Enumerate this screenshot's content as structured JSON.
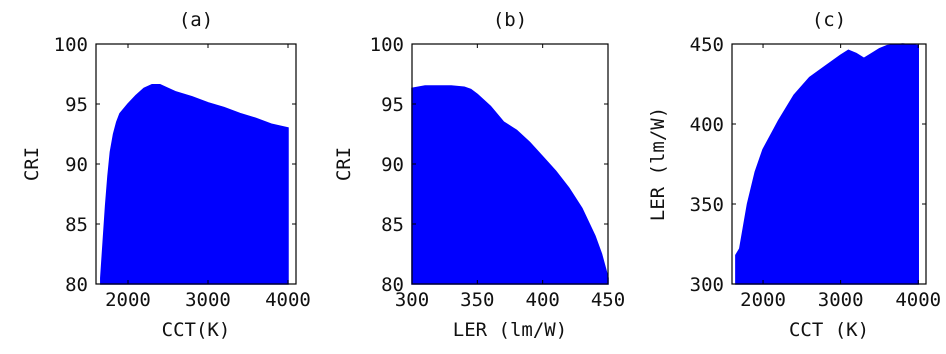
{
  "chart_data": [
    {
      "type": "area",
      "title": "(a)",
      "xlabel": "CCT(K)",
      "ylabel": "CRI",
      "xlim": [
        1600,
        4100
      ],
      "ylim": [
        80,
        100
      ],
      "xticks": [
        2000,
        3000,
        4000
      ],
      "yticks": [
        80,
        85,
        90,
        95,
        100
      ],
      "color": "#0000ff",
      "series": [
        {
          "x": [
            1660,
            1690,
            1720,
            1750,
            1780,
            1820,
            1860,
            1900,
            2000,
            2100,
            2200,
            2300,
            2400,
            2500,
            2600,
            2800,
            3000,
            3200,
            3400,
            3600,
            3800,
            4000,
            4000
          ],
          "upper": [
            80.5,
            83.5,
            86.5,
            89.0,
            91.0,
            92.5,
            93.5,
            94.2,
            95.0,
            95.7,
            96.3,
            96.6,
            96.6,
            96.3,
            96.0,
            95.6,
            95.1,
            94.7,
            94.2,
            93.8,
            93.3,
            93.0,
            80.2
          ],
          "lower": 80
        }
      ]
    },
    {
      "type": "area",
      "title": "(b)",
      "xlabel": "LER (lm/W)",
      "ylabel": "CRI",
      "xlim": [
        300,
        450
      ],
      "ylim": [
        80,
        100
      ],
      "xticks": [
        300,
        350,
        400,
        450
      ],
      "yticks": [
        80,
        85,
        90,
        95,
        100
      ],
      "color": "#0000ff",
      "series": [
        {
          "x": [
            300,
            310,
            330,
            340,
            345,
            350,
            360,
            370,
            380,
            390,
            400,
            410,
            420,
            430,
            440,
            445,
            450
          ],
          "upper": [
            96.3,
            96.5,
            96.5,
            96.4,
            96.2,
            95.8,
            94.8,
            93.5,
            92.8,
            91.8,
            90.6,
            89.4,
            88.0,
            86.3,
            84.0,
            82.5,
            80.5
          ],
          "lower": 80
        }
      ]
    },
    {
      "type": "area",
      "title": "(c)",
      "xlabel": "CCT (K)",
      "ylabel": "LER (lm/W)",
      "xlim": [
        1600,
        4100
      ],
      "ylim": [
        300,
        450
      ],
      "xticks": [
        2000,
        3000,
        4000
      ],
      "yticks": [
        300,
        350,
        400,
        450
      ],
      "color": "#0000ff",
      "series": [
        {
          "x": [
            1650,
            1700,
            1750,
            1800,
            1900,
            2000,
            2200,
            2400,
            2600,
            2800,
            3000,
            3100,
            3200,
            3300,
            3400,
            3500,
            3600,
            3800,
            4000
          ],
          "upper": [
            318,
            322,
            336,
            350,
            370,
            384,
            402,
            418,
            429,
            436,
            443,
            446,
            444,
            441,
            444,
            447,
            449,
            450,
            449
          ],
          "lower": 300
        }
      ]
    }
  ]
}
